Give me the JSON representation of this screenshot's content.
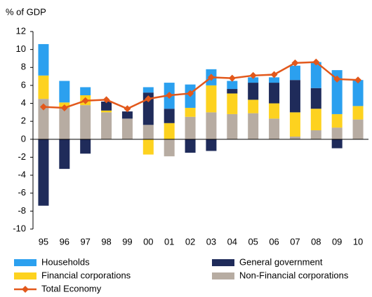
{
  "chart_data": {
    "type": "bar",
    "stacked": true,
    "y_label": "% of GDP",
    "categories": [
      "95",
      "96",
      "97",
      "98",
      "99",
      "00",
      "01",
      "02",
      "03",
      "04",
      "05",
      "06",
      "07",
      "08",
      "09",
      "10"
    ],
    "series": [
      {
        "name": "Households",
        "color": "#2ba0ef",
        "type": "bar",
        "values": [
          3.5,
          2.4,
          0.9,
          0,
          0,
          0.6,
          2.9,
          2.6,
          1.8,
          0.9,
          0.6,
          0.6,
          1.6,
          2.9,
          4.9,
          2.9
        ]
      },
      {
        "name": "General government",
        "color": "#1f2b5a",
        "type": "bar",
        "values": [
          -7.4,
          -3.3,
          -1.6,
          1.0,
          0.8,
          3.6,
          1.6,
          -1.5,
          -1.3,
          0.5,
          1.9,
          2.3,
          3.6,
          2.3,
          -1.0,
          0
        ]
      },
      {
        "name": "Financial corporations",
        "color": "#fdd21f",
        "type": "bar",
        "values": [
          2.6,
          0.6,
          1.1,
          0.2,
          0,
          -1.7,
          1.8,
          1.0,
          3.0,
          2.3,
          1.5,
          1.7,
          2.7,
          2.4,
          1.5,
          1.5
        ]
      },
      {
        "name": "Non-Financial corporations",
        "color": "#b7aca2",
        "type": "bar",
        "values": [
          4.5,
          3.5,
          3.8,
          3.0,
          2.3,
          1.6,
          -1.9,
          2.5,
          3.0,
          2.8,
          2.9,
          2.3,
          0.3,
          1.0,
          1.3,
          2.2
        ]
      },
      {
        "name": "Total Economy",
        "color": "#e2581b",
        "type": "line",
        "values": [
          3.6,
          3.5,
          4.3,
          4.4,
          3.4,
          4.5,
          4.9,
          5.1,
          6.9,
          6.8,
          7.1,
          7.2,
          8.5,
          8.6,
          6.7,
          6.6
        ]
      }
    ],
    "ylim": [
      -10,
      12
    ],
    "yticks": [
      -10,
      -8,
      -6,
      -4,
      -2,
      0,
      2,
      4,
      6,
      8,
      10,
      12
    ]
  }
}
